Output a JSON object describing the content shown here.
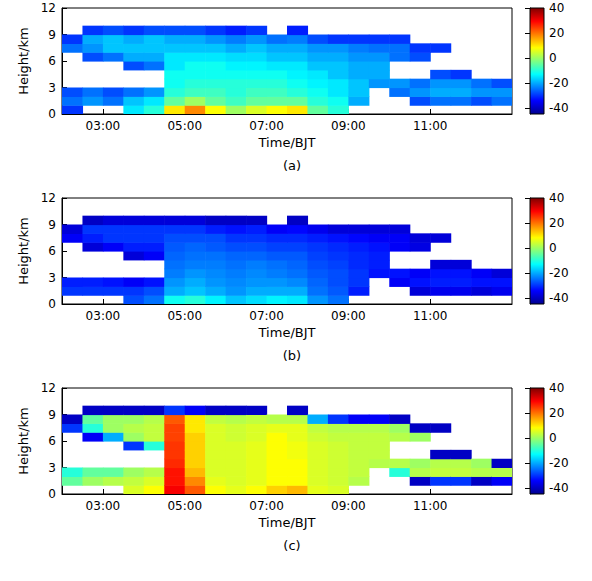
{
  "chart_data": [
    {
      "type": "heatmap",
      "caption": "(a)",
      "x_label": "Time/BJT",
      "y_label": "Height/km",
      "xlim": [
        2,
        13
      ],
      "xticks": [
        {
          "value": 3,
          "label": "03:00"
        },
        {
          "value": 5,
          "label": "05:00"
        },
        {
          "value": 7,
          "label": "07:00"
        },
        {
          "value": 9,
          "label": "09:00"
        },
        {
          "value": 11,
          "label": "11:00"
        }
      ],
      "ylim": [
        0,
        12
      ],
      "yticks": [
        0,
        3,
        6,
        9,
        12
      ],
      "colorbar_range": [
        -45,
        40
      ],
      "colorbar_ticks": [
        -40,
        -20,
        0,
        20,
        40
      ],
      "x": [
        2.25,
        2.75,
        3.25,
        3.75,
        4.25,
        4.75,
        5.25,
        5.75,
        6.25,
        6.75,
        7.25,
        7.75,
        8.25,
        8.75,
        9.25,
        9.75,
        10.25,
        10.75,
        11.25,
        11.75,
        12.25,
        12.75
      ],
      "y": [
        0.5,
        1.5,
        2.5,
        3.5,
        4.5,
        5.5,
        6.5,
        7.5,
        8.5,
        9.5,
        10.5,
        11.5
      ],
      "values": [
        [
          -30,
          -25,
          -28,
          null,
          null,
          null,
          null,
          -25,
          -30,
          null,
          null,
          null
        ],
        [
          null,
          -22,
          -25,
          null,
          null,
          null,
          -28,
          -22,
          -20,
          -30,
          null,
          null
        ],
        [
          null,
          -25,
          -28,
          null,
          null,
          null,
          -25,
          -18,
          -18,
          -28,
          null,
          null
        ],
        [
          -15,
          -18,
          -25,
          null,
          null,
          -28,
          -20,
          -18,
          -20,
          -30,
          null,
          null
        ],
        [
          -10,
          -15,
          -22,
          null,
          null,
          -25,
          -20,
          -18,
          -18,
          -28,
          null,
          null
        ],
        [
          10,
          -5,
          -10,
          -12,
          -12,
          -15,
          -15,
          -18,
          -20,
          -28,
          null,
          null
        ],
        [
          18,
          0,
          -8,
          -10,
          -12,
          -12,
          -15,
          -18,
          -20,
          -28,
          null,
          null
        ],
        [
          8,
          -5,
          -8,
          -10,
          -12,
          -12,
          -15,
          -18,
          -22,
          -30,
          null,
          null
        ],
        [
          0,
          -8,
          -10,
          -10,
          -12,
          -14,
          -16,
          -20,
          -24,
          -32,
          null,
          null
        ],
        [
          5,
          -5,
          -8,
          -10,
          -12,
          -14,
          -16,
          -18,
          -22,
          -30,
          null,
          null
        ],
        [
          8,
          -5,
          -8,
          -10,
          -12,
          -15,
          -18,
          -20,
          -25,
          null,
          null,
          null
        ],
        [
          10,
          -5,
          -10,
          -12,
          -14,
          -15,
          -18,
          -20,
          -24,
          -32,
          null,
          null
        ],
        [
          -5,
          -10,
          -12,
          -14,
          -15,
          -18,
          -20,
          -22,
          -28,
          null,
          null,
          null
        ],
        [
          -10,
          -12,
          -15,
          -15,
          -18,
          -18,
          -20,
          -22,
          -30,
          null,
          null,
          null
        ],
        [
          null,
          -20,
          -18,
          -18,
          -20,
          -20,
          -22,
          -24,
          -30,
          null,
          null,
          null
        ],
        [
          null,
          null,
          null,
          -22,
          -20,
          -20,
          -22,
          -25,
          -30,
          null,
          null,
          null
        ],
        [
          null,
          null,
          -25,
          -22,
          null,
          null,
          -25,
          -25,
          -30,
          null,
          null,
          null
        ],
        [
          null,
          -28,
          -22,
          -25,
          null,
          null,
          -28,
          -30,
          null,
          null,
          null,
          null
        ],
        [
          null,
          -25,
          -20,
          -22,
          -28,
          null,
          null,
          -30,
          null,
          null,
          null,
          null
        ],
        [
          null,
          -25,
          -20,
          -22,
          -30,
          null,
          null,
          null,
          null,
          null,
          null,
          null
        ],
        [
          null,
          -28,
          -22,
          -25,
          null,
          null,
          null,
          null,
          null,
          null,
          null,
          null
        ],
        [
          null,
          -25,
          -22,
          -28,
          null,
          null,
          null,
          null,
          null,
          null,
          null,
          null
        ]
      ]
    },
    {
      "type": "heatmap",
      "caption": "(b)",
      "x_label": "Time/BJT",
      "y_label": "Height/km",
      "xlim": [
        2,
        13
      ],
      "xticks": [
        {
          "value": 3,
          "label": "03:00"
        },
        {
          "value": 5,
          "label": "05:00"
        },
        {
          "value": 7,
          "label": "07:00"
        },
        {
          "value": 9,
          "label": "09:00"
        },
        {
          "value": 11,
          "label": "11:00"
        }
      ],
      "ylim": [
        0,
        12
      ],
      "yticks": [
        0,
        3,
        6,
        9,
        12
      ],
      "colorbar_range": [
        -45,
        40
      ],
      "colorbar_ticks": [
        -40,
        -20,
        0,
        20,
        40
      ],
      "x": [
        2.25,
        2.75,
        3.25,
        3.75,
        4.25,
        4.75,
        5.25,
        5.75,
        6.25,
        6.75,
        7.25,
        7.75,
        8.25,
        8.75,
        9.25,
        9.75,
        10.25,
        10.75,
        11.25,
        11.75,
        12.25,
        12.75
      ],
      "y": [
        0.5,
        1.5,
        2.5,
        3.5,
        4.5,
        5.5,
        6.5,
        7.5,
        8.5,
        9.5,
        10.5,
        11.5
      ],
      "values": [
        [
          null,
          -30,
          -32,
          null,
          null,
          null,
          null,
          -35,
          -38,
          null,
          null,
          null
        ],
        [
          null,
          -30,
          -32,
          null,
          null,
          null,
          -38,
          -32,
          -30,
          -40,
          null,
          null
        ],
        [
          null,
          -30,
          -33,
          null,
          null,
          null,
          -35,
          -30,
          -30,
          -38,
          null,
          null
        ],
        [
          -28,
          -30,
          -35,
          null,
          null,
          -38,
          -32,
          -30,
          -30,
          -38,
          null,
          null
        ],
        [
          -25,
          -28,
          -33,
          null,
          null,
          -35,
          -32,
          -30,
          -30,
          -38,
          null,
          null
        ],
        [
          -12,
          -20,
          -22,
          -24,
          -25,
          -26,
          -27,
          -28,
          -30,
          -38,
          null,
          null
        ],
        [
          -10,
          -18,
          -20,
          -22,
          -24,
          -25,
          -26,
          -28,
          -30,
          -38,
          null,
          null
        ],
        [
          -14,
          -20,
          -22,
          -23,
          -24,
          -25,
          -27,
          -28,
          -32,
          -40,
          null,
          null
        ],
        [
          -18,
          -22,
          -23,
          -24,
          -25,
          -26,
          -28,
          -30,
          -33,
          -40,
          null,
          null
        ],
        [
          -16,
          -20,
          -22,
          -23,
          -24,
          -26,
          -28,
          -30,
          -32,
          -40,
          null,
          null
        ],
        [
          -14,
          -20,
          -22,
          -24,
          -25,
          -27,
          -29,
          -31,
          -35,
          null,
          null,
          null
        ],
        [
          -15,
          -20,
          -23,
          -25,
          -26,
          -27,
          -29,
          -31,
          -34,
          -40,
          null,
          null
        ],
        [
          -22,
          -25,
          -26,
          -27,
          -28,
          -29,
          -30,
          -32,
          -36,
          null,
          null,
          null
        ],
        [
          -25,
          -27,
          -28,
          -28,
          -29,
          -30,
          -31,
          -33,
          -38,
          null,
          null,
          null
        ],
        [
          null,
          -32,
          -30,
          -30,
          -31,
          -31,
          -32,
          -34,
          -38,
          null,
          null,
          null
        ],
        [
          null,
          null,
          null,
          -33,
          -32,
          -32,
          -33,
          -35,
          -38,
          null,
          null,
          null
        ],
        [
          null,
          null,
          -35,
          -33,
          null,
          null,
          -35,
          -35,
          -38,
          null,
          null,
          null
        ],
        [
          null,
          -38,
          -33,
          -35,
          null,
          null,
          -37,
          -38,
          null,
          null,
          null,
          null
        ],
        [
          null,
          -36,
          -32,
          -33,
          -38,
          null,
          null,
          -38,
          null,
          null,
          null,
          null
        ],
        [
          null,
          -36,
          -32,
          -33,
          -38,
          null,
          null,
          null,
          null,
          null,
          null,
          null
        ],
        [
          null,
          -38,
          -33,
          -35,
          null,
          null,
          null,
          null,
          null,
          null,
          null,
          null
        ],
        [
          null,
          -36,
          -33,
          -38,
          null,
          null,
          null,
          null,
          null,
          null,
          null,
          null
        ]
      ]
    },
    {
      "type": "heatmap",
      "caption": "(c)",
      "x_label": "Time/BJT",
      "y_label": "Height/km",
      "xlim": [
        2,
        13
      ],
      "xticks": [
        {
          "value": 3,
          "label": "03:00"
        },
        {
          "value": 5,
          "label": "05:00"
        },
        {
          "value": 7,
          "label": "07:00"
        },
        {
          "value": 9,
          "label": "09:00"
        },
        {
          "value": 11,
          "label": "11:00"
        }
      ],
      "ylim": [
        0,
        12
      ],
      "yticks": [
        0,
        3,
        6,
        9,
        12
      ],
      "colorbar_range": [
        -45,
        40
      ],
      "colorbar_ticks": [
        -40,
        -20,
        0,
        20,
        40
      ],
      "x": [
        2.25,
        2.75,
        3.25,
        3.75,
        4.25,
        4.75,
        5.25,
        5.75,
        6.25,
        6.75,
        7.25,
        7.75,
        8.25,
        8.75,
        9.25,
        9.75,
        10.25,
        10.75,
        11.25,
        11.75,
        12.25,
        12.75
      ],
      "y": [
        0.5,
        1.5,
        2.5,
        3.5,
        4.5,
        5.5,
        6.5,
        7.5,
        8.5,
        9.5,
        10.5,
        11.5
      ],
      "values": [
        [
          null,
          -5,
          -10,
          null,
          null,
          null,
          null,
          -30,
          -40,
          null,
          null,
          null
        ],
        [
          null,
          0,
          -5,
          null,
          null,
          null,
          -35,
          -10,
          -5,
          -40,
          null,
          null
        ],
        [
          null,
          2,
          -5,
          null,
          null,
          null,
          -20,
          0,
          0,
          -40,
          null,
          null
        ],
        [
          5,
          3,
          0,
          null,
          null,
          -30,
          0,
          2,
          0,
          -40,
          null,
          null
        ],
        [
          8,
          5,
          2,
          null,
          null,
          -10,
          3,
          3,
          2,
          -40,
          null,
          null
        ],
        [
          30,
          28,
          28,
          26,
          25,
          25,
          24,
          24,
          22,
          -30,
          null,
          null
        ],
        [
          22,
          18,
          14,
          12,
          12,
          12,
          12,
          10,
          10,
          -35,
          null,
          null
        ],
        [
          8,
          6,
          5,
          5,
          5,
          5,
          5,
          5,
          3,
          -40,
          null,
          null
        ],
        [
          6,
          5,
          5,
          5,
          5,
          5,
          4,
          4,
          2,
          -40,
          null,
          null
        ],
        [
          8,
          6,
          6,
          6,
          6,
          6,
          5,
          5,
          3,
          -40,
          null,
          null
        ],
        [
          12,
          8,
          8,
          8,
          8,
          8,
          8,
          6,
          2,
          null,
          null,
          null
        ],
        [
          14,
          8,
          8,
          8,
          7,
          7,
          6,
          6,
          2,
          -40,
          null,
          null
        ],
        [
          6,
          5,
          5,
          5,
          5,
          5,
          4,
          3,
          -20,
          null,
          null,
          null
        ],
        [
          5,
          4,
          4,
          4,
          4,
          4,
          3,
          2,
          -30,
          null,
          null,
          null
        ],
        [
          null,
          2,
          3,
          3,
          3,
          3,
          3,
          2,
          -35,
          null,
          null,
          null
        ],
        [
          null,
          null,
          null,
          2,
          3,
          3,
          3,
          2,
          -35,
          null,
          null,
          null
        ],
        [
          null,
          null,
          -10,
          2,
          null,
          null,
          2,
          0,
          -40,
          null,
          null,
          null
        ],
        [
          null,
          -40,
          2,
          0,
          null,
          null,
          0,
          -40,
          null,
          null,
          null,
          null
        ],
        [
          null,
          -30,
          3,
          2,
          -40,
          null,
          null,
          -40,
          null,
          null,
          null,
          null
        ],
        [
          null,
          -30,
          3,
          2,
          -40,
          null,
          null,
          null,
          null,
          null,
          null,
          null
        ],
        [
          null,
          -40,
          2,
          0,
          null,
          null,
          null,
          null,
          null,
          null,
          null,
          null
        ],
        [
          null,
          -35,
          2,
          -40,
          null,
          null,
          null,
          null,
          null,
          null,
          null,
          null
        ]
      ]
    }
  ]
}
